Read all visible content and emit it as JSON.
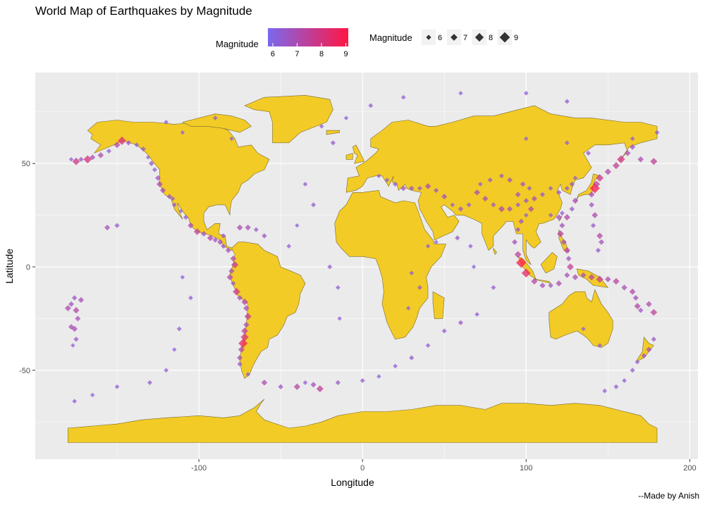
{
  "chart_data": {
    "type": "scatter",
    "title": "World Map of Earthquakes by Magnitude",
    "xlabel": "Longitude",
    "ylabel": "Latitude",
    "caption": "--Made by Anish",
    "xlim": [
      -200,
      205
    ],
    "ylim": [
      -93,
      94
    ],
    "x_ticks": [
      -100,
      0,
      100,
      200
    ],
    "y_ticks": [
      -50,
      0,
      50
    ],
    "grid": true,
    "land_color": "#f2cb26",
    "panel_color": "#ebebeb",
    "legend": {
      "position": "top",
      "color_title": "Magnitude",
      "color_ticks": [
        6,
        7,
        8,
        9
      ],
      "color_low": "#7b68ee",
      "color_high": "#ff1744",
      "size_title": "Magnitude",
      "size_values": [
        6,
        7,
        8,
        9
      ]
    },
    "series": [
      {
        "points": [
          [
            -178,
            52,
            6.2
          ],
          [
            -172,
            52,
            6.5
          ],
          [
            -165,
            53,
            6.8
          ],
          [
            -160,
            54,
            7.0
          ],
          [
            -155,
            56,
            6.4
          ],
          [
            -150,
            59,
            7.2
          ],
          [
            -147,
            61,
            8.2
          ],
          [
            -143,
            60,
            6.6
          ],
          [
            -138,
            59,
            6.3
          ],
          [
            -134,
            57,
            6.5
          ],
          [
            -131,
            53,
            6.2
          ],
          [
            -129,
            50,
            6.7
          ],
          [
            -127,
            47,
            6.4
          ],
          [
            -125,
            43,
            6.8
          ],
          [
            -124,
            40,
            7.1
          ],
          [
            -122,
            37,
            6.9
          ],
          [
            -118,
            34,
            6.6
          ],
          [
            -116,
            33,
            6.3
          ],
          [
            -115,
            30,
            6.4
          ],
          [
            -111,
            27,
            6.2
          ],
          [
            -108,
            24,
            6.5
          ],
          [
            -105,
            20,
            7.0
          ],
          [
            -101,
            17,
            7.4
          ],
          [
            -97,
            16,
            6.8
          ],
          [
            -93,
            14,
            7.2
          ],
          [
            -90,
            13,
            6.6
          ],
          [
            -87,
            12,
            6.9
          ],
          [
            -85,
            10,
            6.5
          ],
          [
            -82,
            8,
            6.8
          ],
          [
            -79,
            4,
            7.0
          ],
          [
            -78,
            1,
            7.6
          ],
          [
            -80,
            -2,
            6.9
          ],
          [
            -81,
            -5,
            7.2
          ],
          [
            -79,
            -8,
            6.5
          ],
          [
            -77,
            -12,
            7.8
          ],
          [
            -75,
            -15,
            6.8
          ],
          [
            -72,
            -17,
            7.3
          ],
          [
            -71,
            -20,
            7.0
          ],
          [
            -70,
            -24,
            7.5
          ],
          [
            -71,
            -28,
            6.9
          ],
          [
            -72,
            -31,
            7.4
          ],
          [
            -72,
            -34,
            8.0
          ],
          [
            -73,
            -37,
            8.6
          ],
          [
            -74,
            -40,
            7.2
          ],
          [
            -75,
            -44,
            6.8
          ],
          [
            -75,
            -47,
            6.5
          ],
          [
            -70,
            -52,
            6.3
          ],
          [
            -60,
            -56,
            7.0
          ],
          [
            -50,
            -58,
            6.6
          ],
          [
            -40,
            -58,
            7.2
          ],
          [
            -30,
            -57,
            6.8
          ],
          [
            -26,
            -59,
            7.5
          ],
          [
            -35,
            -56,
            6.3
          ],
          [
            -15,
            -56,
            6.5
          ],
          [
            0,
            -55,
            6.4
          ],
          [
            10,
            -53,
            6.2
          ],
          [
            20,
            -48,
            6.3
          ],
          [
            30,
            -44,
            6.5
          ],
          [
            40,
            -38,
            6.3
          ],
          [
            50,
            -31,
            6.4
          ],
          [
            60,
            -27,
            6.5
          ],
          [
            70,
            -23,
            6.3
          ],
          [
            80,
            -10,
            6.4
          ],
          [
            68,
            0,
            6.2
          ],
          [
            66,
            10,
            6.3
          ],
          [
            58,
            14,
            6.5
          ],
          [
            45,
            12,
            6.2
          ],
          [
            -35,
            40,
            6.3
          ],
          [
            -30,
            30,
            6.4
          ],
          [
            -40,
            20,
            6.2
          ],
          [
            -45,
            10,
            6.3
          ],
          [
            -20,
            0,
            6.4
          ],
          [
            -15,
            -10,
            6.3
          ],
          [
            -14,
            -25,
            6.2
          ],
          [
            -18,
            60,
            6.5
          ],
          [
            -25,
            68,
            6.3
          ],
          [
            -10,
            72,
            6.2
          ],
          [
            5,
            78,
            6.4
          ],
          [
            25,
            82,
            6.3
          ],
          [
            60,
            84,
            6.2
          ],
          [
            100,
            84,
            6.3
          ],
          [
            125,
            80,
            6.4
          ],
          [
            -60,
            15,
            6.6
          ],
          [
            -70,
            19,
            6.9
          ],
          [
            -75,
            19,
            7.0
          ],
          [
            -85,
            15,
            6.5
          ],
          [
            -65,
            18,
            6.4
          ],
          [
            140,
            35,
            7.0
          ],
          [
            142,
            38,
            9.0
          ],
          [
            143,
            40,
            7.6
          ],
          [
            145,
            43,
            7.8
          ],
          [
            150,
            46,
            7.2
          ],
          [
            155,
            49,
            7.5
          ],
          [
            158,
            52,
            8.0
          ],
          [
            162,
            55,
            7.0
          ],
          [
            165,
            58,
            6.8
          ],
          [
            140,
            30,
            6.7
          ],
          [
            142,
            25,
            7.1
          ],
          [
            141,
            20,
            6.5
          ],
          [
            145,
            15,
            7.2
          ],
          [
            146,
            12,
            6.8
          ],
          [
            144,
            8,
            6.5
          ],
          [
            130,
            32,
            7.0
          ],
          [
            128,
            28,
            6.6
          ],
          [
            125,
            24,
            7.2
          ],
          [
            122,
            20,
            6.8
          ],
          [
            121,
            16,
            7.4
          ],
          [
            123,
            12,
            6.9
          ],
          [
            125,
            8,
            7.3
          ],
          [
            126,
            4,
            6.7
          ],
          [
            127,
            0,
            7.5
          ],
          [
            125,
            -4,
            6.8
          ],
          [
            120,
            -8,
            7.0
          ],
          [
            115,
            -9,
            6.6
          ],
          [
            110,
            -9,
            6.9
          ],
          [
            105,
            -7,
            7.2
          ],
          [
            100,
            -3,
            8.5
          ],
          [
            97,
            2,
            9.1
          ],
          [
            95,
            6,
            7.4
          ],
          [
            93,
            12,
            6.8
          ],
          [
            95,
            18,
            6.5
          ],
          [
            97,
            22,
            6.7
          ],
          [
            100,
            25,
            6.3
          ],
          [
            103,
            28,
            7.0
          ],
          [
            100,
            32,
            6.6
          ],
          [
            95,
            30,
            6.4
          ],
          [
            90,
            28,
            6.8
          ],
          [
            85,
            28,
            7.2
          ],
          [
            80,
            30,
            6.5
          ],
          [
            75,
            33,
            6.9
          ],
          [
            70,
            36,
            7.0
          ],
          [
            65,
            30,
            6.4
          ],
          [
            60,
            28,
            6.6
          ],
          [
            55,
            30,
            6.3
          ],
          [
            50,
            34,
            6.8
          ],
          [
            45,
            37,
            6.5
          ],
          [
            40,
            39,
            7.0
          ],
          [
            35,
            38,
            6.4
          ],
          [
            30,
            38,
            6.6
          ],
          [
            25,
            38,
            6.8
          ],
          [
            20,
            40,
            6.5
          ],
          [
            15,
            42,
            6.3
          ],
          [
            10,
            44,
            6.2
          ],
          [
            130,
            -5,
            7.0
          ],
          [
            135,
            -4,
            6.8
          ],
          [
            140,
            -5,
            7.2
          ],
          [
            145,
            -6,
            7.6
          ],
          [
            150,
            -6,
            7.0
          ],
          [
            155,
            -7,
            7.3
          ],
          [
            160,
            -10,
            6.9
          ],
          [
            165,
            -12,
            7.1
          ],
          [
            167,
            -15,
            6.8
          ],
          [
            168,
            -19,
            7.2
          ],
          [
            170,
            -21,
            6.6
          ],
          [
            175,
            -18,
            7.0
          ],
          [
            178,
            -22,
            7.4
          ],
          [
            -178,
            -18,
            6.7
          ],
          [
            -175,
            -21,
            7.2
          ],
          [
            -174,
            -25,
            6.8
          ],
          [
            -176,
            -30,
            7.0
          ],
          [
            178,
            -35,
            6.5
          ],
          [
            175,
            -40,
            6.8
          ],
          [
            172,
            -43,
            6.6
          ],
          [
            168,
            -46,
            6.3
          ],
          [
            165,
            -50,
            6.4
          ],
          [
            160,
            -55,
            6.3
          ],
          [
            155,
            -58,
            6.4
          ],
          [
            148,
            -60,
            6.3
          ],
          [
            -176,
            -15,
            6.6
          ],
          [
            -172,
            -16,
            6.9
          ],
          [
            -180,
            -20,
            7.1
          ],
          [
            -175,
            -35,
            6.5
          ],
          [
            -178,
            -29,
            6.8
          ],
          [
            -177,
            -38,
            6.2
          ],
          [
            -110,
            -5,
            6.2
          ],
          [
            -105,
            -15,
            6.3
          ],
          [
            -112,
            -30,
            6.4
          ],
          [
            -115,
            -40,
            6.2
          ],
          [
            -120,
            -50,
            6.3
          ],
          [
            -130,
            -56,
            6.4
          ],
          [
            -150,
            -58,
            6.3
          ],
          [
            -165,
            -62,
            6.2
          ],
          [
            -176,
            -65,
            6.3
          ],
          [
            128,
            40,
            6.5
          ],
          [
            130,
            43,
            6.3
          ],
          [
            125,
            38,
            6.4
          ],
          [
            120,
            36,
            6.6
          ],
          [
            115,
            38,
            6.3
          ],
          [
            110,
            35,
            6.5
          ],
          [
            105,
            33,
            6.8
          ],
          [
            102,
            38,
            6.4
          ],
          [
            98,
            40,
            6.6
          ],
          [
            90,
            42,
            6.7
          ],
          [
            85,
            44,
            6.4
          ],
          [
            78,
            42,
            6.5
          ],
          [
            72,
            40,
            6.3
          ],
          [
            95,
            35,
            6.8
          ],
          [
            115,
            25,
            6.3
          ],
          [
            120,
            24,
            7.0
          ],
          [
            122,
            26,
            6.4
          ],
          [
            135,
            -30,
            6.2
          ],
          [
            145,
            -38,
            6.3
          ],
          [
            30,
            -3,
            6.3
          ],
          [
            35,
            -10,
            6.4
          ],
          [
            28,
            -20,
            6.2
          ],
          [
            40,
            10,
            6.3
          ],
          [
            -150,
            20,
            6.5
          ],
          [
            -156,
            19,
            6.8
          ],
          [
            -120,
            70,
            6.3
          ],
          [
            -110,
            65,
            6.2
          ],
          [
            -90,
            72,
            6.3
          ],
          [
            -80,
            62,
            6.2
          ],
          [
            100,
            62,
            6.3
          ],
          [
            125,
            60,
            6.4
          ],
          [
            138,
            55,
            6.5
          ],
          [
            165,
            62,
            6.3
          ],
          [
            180,
            65,
            6.4
          ],
          [
            170,
            52,
            7.0
          ],
          [
            178,
            51,
            7.5
          ],
          [
            -175,
            51,
            7.8
          ],
          [
            -168,
            52,
            8.1
          ]
        ]
      }
    ]
  }
}
